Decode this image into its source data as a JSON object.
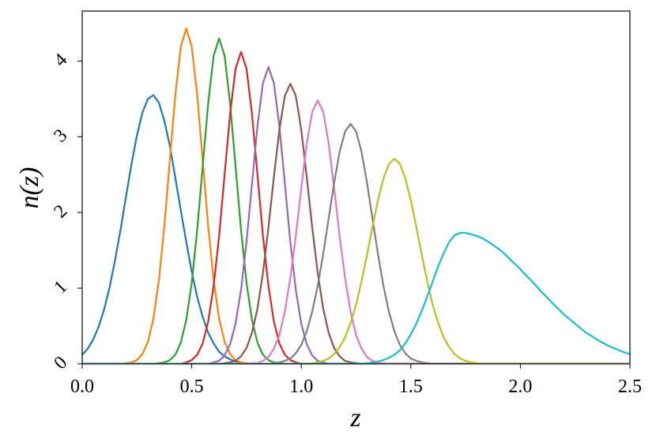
{
  "chart_data": {
    "type": "line",
    "x_label": "z",
    "y_label": "n(z)",
    "xlim": [
      0,
      2.5
    ],
    "ylim": [
      0,
      4.66
    ],
    "xticks": [
      {
        "value": 0,
        "label": "0.0"
      },
      0.5,
      {
        "value": 1,
        "label": "1.0"
      },
      1.5,
      {
        "value": 2,
        "label": "2.0"
      },
      2.5
    ],
    "yticks": [
      0,
      1,
      2,
      3,
      4
    ],
    "grid": false,
    "x": [
      0,
      0.025,
      0.05,
      0.075,
      0.1,
      0.125,
      0.15,
      0.175,
      0.2,
      0.225,
      0.25,
      0.275,
      0.3,
      0.325,
      0.35,
      0.375,
      0.4,
      0.425,
      0.45,
      0.475,
      0.5,
      0.525,
      0.55,
      0.575,
      0.6,
      0.625,
      0.65,
      0.675,
      0.7,
      0.725,
      0.75,
      0.775,
      0.8,
      0.825,
      0.85,
      0.875,
      0.9,
      0.925,
      0.95,
      0.975,
      1,
      1.025,
      1.05,
      1.075,
      1.1,
      1.125,
      1.15,
      1.175,
      1.2,
      1.225,
      1.25,
      1.275,
      1.3,
      1.325,
      1.35,
      1.375,
      1.4,
      1.425,
      1.45,
      1.475,
      1.5,
      1.525,
      1.55,
      1.575,
      1.6,
      1.625,
      1.65,
      1.675,
      1.7,
      1.725,
      1.75,
      1.775,
      1.8,
      1.825,
      1.85,
      1.875,
      1.9,
      1.925,
      1.95,
      1.975,
      2,
      2.025,
      2.05,
      2.075,
      2.1,
      2.125,
      2.15,
      2.175,
      2.2,
      2.225,
      2.25,
      2.275,
      2.3,
      2.325,
      2.35,
      2.375,
      2.4,
      2.425,
      2.45,
      2.475,
      2.5
    ],
    "series": [
      {
        "color": "#1f77b4",
        "values": [
          0.12,
          0.2,
          0.32,
          0.49,
          0.72,
          1.01,
          1.37,
          1.77,
          2.21,
          2.64,
          3.02,
          3.32,
          3.5,
          3.55,
          3.45,
          3.21,
          2.88,
          2.46,
          2.03,
          1.61,
          1.22,
          0.88,
          0.62,
          0.41,
          0.27,
          0.16,
          0.1,
          0.06,
          0.03,
          0.01,
          0,
          0,
          0,
          0,
          0,
          0,
          0,
          0,
          0,
          0,
          0,
          0,
          0,
          0,
          0,
          0,
          0,
          0,
          0,
          0,
          0,
          0,
          0,
          0,
          0,
          0,
          0,
          0,
          0,
          0,
          0,
          0,
          0,
          0,
          0,
          0,
          0,
          0,
          0,
          0,
          0,
          0,
          0,
          0,
          0,
          0,
          0,
          0,
          0,
          0,
          0,
          0,
          0,
          0,
          0,
          0,
          0,
          0,
          0,
          0,
          0,
          0,
          0,
          0,
          0,
          0,
          0,
          0,
          0,
          0,
          0
        ]
      },
      {
        "color": "#ff7f0e",
        "values": [
          0,
          0,
          0,
          0,
          0,
          0,
          0,
          0,
          0.01,
          0.02,
          0.05,
          0.13,
          0.29,
          0.6,
          1.1,
          1.82,
          2.69,
          3.55,
          4.19,
          4.43,
          4.19,
          3.55,
          2.69,
          1.82,
          1.1,
          0.6,
          0.29,
          0.13,
          0.05,
          0.02,
          0.01,
          0,
          0,
          0,
          0,
          0,
          0,
          0,
          0,
          0,
          0,
          0,
          0,
          0,
          0,
          0,
          0,
          0,
          0,
          0,
          0,
          0,
          0,
          0,
          0,
          0,
          0,
          0,
          0,
          0,
          0,
          0,
          0,
          0,
          0,
          0,
          0,
          0,
          0,
          0,
          0,
          0,
          0,
          0,
          0,
          0,
          0,
          0,
          0,
          0,
          0,
          0,
          0,
          0,
          0,
          0,
          0,
          0,
          0,
          0,
          0,
          0,
          0,
          0,
          0,
          0,
          0,
          0,
          0,
          0,
          0
        ]
      },
      {
        "color": "#2ca02c",
        "values": [
          0,
          0,
          0,
          0,
          0,
          0,
          0,
          0,
          0,
          0,
          0,
          0,
          0,
          0,
          0.01,
          0.02,
          0.05,
          0.12,
          0.28,
          0.58,
          1.07,
          1.77,
          2.61,
          3.44,
          4.07,
          4.3,
          4.07,
          3.44,
          2.61,
          1.77,
          1.07,
          0.58,
          0.28,
          0.12,
          0.05,
          0.02,
          0.01,
          0,
          0,
          0,
          0,
          0,
          0,
          0,
          0,
          0,
          0,
          0,
          0,
          0,
          0,
          0,
          0,
          0,
          0,
          0,
          0,
          0,
          0,
          0,
          0,
          0,
          0,
          0,
          0,
          0,
          0,
          0,
          0,
          0,
          0,
          0,
          0,
          0,
          0,
          0,
          0,
          0,
          0,
          0,
          0,
          0,
          0,
          0,
          0,
          0,
          0,
          0,
          0,
          0,
          0,
          0,
          0,
          0,
          0,
          0,
          0,
          0,
          0,
          0,
          0
        ]
      },
      {
        "color": "#d62728",
        "values": [
          0,
          0,
          0,
          0,
          0,
          0,
          0,
          0,
          0,
          0,
          0,
          0,
          0,
          0,
          0,
          0,
          0,
          0,
          0,
          0.02,
          0.05,
          0.12,
          0.27,
          0.56,
          1.03,
          1.69,
          2.5,
          3.3,
          3.9,
          4.12,
          3.9,
          3.3,
          2.5,
          1.69,
          1.03,
          0.56,
          0.27,
          0.12,
          0.05,
          0.02,
          0,
          0,
          0,
          0,
          0,
          0,
          0,
          0,
          0,
          0,
          0,
          0,
          0,
          0,
          0,
          0,
          0,
          0,
          0,
          0,
          0,
          0,
          0,
          0,
          0,
          0,
          0,
          0,
          0,
          0,
          0,
          0,
          0,
          0,
          0,
          0,
          0,
          0,
          0,
          0,
          0,
          0,
          0,
          0,
          0,
          0,
          0,
          0,
          0,
          0,
          0,
          0,
          0,
          0,
          0,
          0,
          0,
          0,
          0,
          0,
          0
        ]
      },
      {
        "color": "#9467bd",
        "values": [
          0,
          0,
          0,
          0,
          0,
          0,
          0,
          0,
          0,
          0,
          0,
          0,
          0,
          0,
          0,
          0,
          0,
          0,
          0,
          0,
          0,
          0,
          0,
          0,
          0.02,
          0.04,
          0.11,
          0.26,
          0.53,
          0.98,
          1.61,
          2.38,
          3.14,
          3.71,
          3.92,
          3.71,
          3.14,
          2.38,
          1.61,
          0.98,
          0.53,
          0.26,
          0.11,
          0.04,
          0.02,
          0,
          0,
          0,
          0,
          0,
          0,
          0,
          0,
          0,
          0,
          0,
          0,
          0,
          0,
          0,
          0,
          0,
          0,
          0,
          0,
          0,
          0,
          0,
          0,
          0,
          0,
          0,
          0,
          0,
          0,
          0,
          0,
          0,
          0,
          0,
          0,
          0,
          0,
          0,
          0,
          0,
          0,
          0,
          0,
          0,
          0,
          0,
          0,
          0,
          0,
          0,
          0,
          0,
          0,
          0,
          0
        ]
      },
      {
        "color": "#8c564b",
        "values": [
          0,
          0,
          0,
          0,
          0,
          0,
          0,
          0,
          0,
          0,
          0,
          0,
          0,
          0,
          0,
          0,
          0,
          0,
          0,
          0,
          0,
          0,
          0,
          0,
          0,
          0,
          0.01,
          0.02,
          0.04,
          0.1,
          0.21,
          0.41,
          0.73,
          1.2,
          1.8,
          2.47,
          3.09,
          3.54,
          3.7,
          3.54,
          3.09,
          2.47,
          1.8,
          1.2,
          0.73,
          0.41,
          0.21,
          0.1,
          0.04,
          0.02,
          0.01,
          0,
          0,
          0,
          0,
          0,
          0,
          0,
          0,
          0,
          0,
          0,
          0,
          0,
          0,
          0,
          0,
          0,
          0,
          0,
          0,
          0,
          0,
          0,
          0,
          0,
          0,
          0,
          0,
          0,
          0,
          0,
          0,
          0,
          0,
          0,
          0,
          0,
          0,
          0,
          0,
          0,
          0,
          0,
          0,
          0,
          0,
          0,
          0,
          0,
          0
        ]
      },
      {
        "color": "#e377c2",
        "values": [
          0,
          0,
          0,
          0,
          0,
          0,
          0,
          0,
          0,
          0,
          0,
          0,
          0,
          0,
          0,
          0,
          0,
          0,
          0,
          0,
          0,
          0,
          0,
          0,
          0,
          0,
          0,
          0,
          0,
          0,
          0,
          0.01,
          0.01,
          0.04,
          0.09,
          0.2,
          0.38,
          0.69,
          1.13,
          1.69,
          2.32,
          2.91,
          3.33,
          3.48,
          3.33,
          2.91,
          2.32,
          1.69,
          1.13,
          0.69,
          0.38,
          0.2,
          0.09,
          0.04,
          0.01,
          0.01,
          0,
          0,
          0,
          0,
          0,
          0,
          0,
          0,
          0,
          0,
          0,
          0,
          0,
          0,
          0,
          0,
          0,
          0,
          0,
          0,
          0,
          0,
          0,
          0,
          0,
          0,
          0,
          0,
          0,
          0,
          0,
          0,
          0,
          0,
          0,
          0,
          0,
          0,
          0,
          0,
          0,
          0,
          0,
          0,
          0
        ]
      },
      {
        "color": "#7f7f7f",
        "values": [
          0,
          0,
          0,
          0,
          0,
          0,
          0,
          0,
          0,
          0,
          0,
          0,
          0,
          0,
          0,
          0,
          0,
          0,
          0,
          0,
          0,
          0,
          0,
          0,
          0,
          0,
          0,
          0,
          0,
          0,
          0,
          0,
          0,
          0,
          0,
          0.01,
          0.02,
          0.04,
          0.07,
          0.14,
          0.25,
          0.43,
          0.69,
          1.03,
          1.45,
          1.92,
          2.39,
          2.8,
          3.07,
          3.17,
          3.07,
          2.8,
          2.39,
          1.92,
          1.45,
          1.03,
          0.69,
          0.43,
          0.25,
          0.14,
          0.07,
          0.04,
          0.02,
          0.01,
          0,
          0,
          0,
          0,
          0,
          0,
          0,
          0,
          0,
          0,
          0,
          0,
          0,
          0,
          0,
          0,
          0,
          0,
          0,
          0,
          0,
          0,
          0,
          0,
          0,
          0,
          0,
          0,
          0,
          0,
          0,
          0,
          0,
          0,
          0,
          0,
          0
        ]
      },
      {
        "color": "#bcbd22",
        "values": [
          0,
          0,
          0,
          0,
          0,
          0,
          0,
          0,
          0,
          0,
          0,
          0,
          0,
          0,
          0,
          0,
          0,
          0,
          0,
          0,
          0,
          0,
          0,
          0,
          0,
          0,
          0,
          0,
          0,
          0,
          0,
          0,
          0,
          0,
          0,
          0,
          0,
          0,
          0,
          0,
          0,
          0,
          0.01,
          0.02,
          0.04,
          0.07,
          0.13,
          0.22,
          0.35,
          0.54,
          0.78,
          1.09,
          1.44,
          1.81,
          2.16,
          2.45,
          2.64,
          2.71,
          2.64,
          2.45,
          2.16,
          1.81,
          1.44,
          1.09,
          0.78,
          0.54,
          0.35,
          0.22,
          0.13,
          0.07,
          0.04,
          0.02,
          0.01,
          0,
          0,
          0,
          0,
          0,
          0,
          0,
          0,
          0,
          0,
          0,
          0,
          0,
          0,
          0,
          0,
          0,
          0,
          0,
          0,
          0,
          0,
          0,
          0,
          0,
          0,
          0,
          0
        ]
      },
      {
        "color": "#17becf",
        "values": [
          0,
          0,
          0,
          0,
          0,
          0,
          0,
          0,
          0,
          0,
          0,
          0,
          0,
          0,
          0,
          0,
          0,
          0,
          0,
          0,
          0,
          0,
          0,
          0,
          0,
          0,
          0,
          0,
          0,
          0,
          0,
          0,
          0,
          0,
          0,
          0,
          0,
          0,
          0,
          0,
          0,
          0,
          0,
          0,
          0,
          0,
          0,
          0,
          0,
          0,
          0,
          0,
          0.01,
          0.02,
          0.03,
          0.05,
          0.08,
          0.12,
          0.18,
          0.27,
          0.39,
          0.53,
          0.7,
          0.89,
          1.09,
          1.29,
          1.46,
          1.61,
          1.7,
          1.73,
          1.73,
          1.71,
          1.69,
          1.66,
          1.62,
          1.57,
          1.52,
          1.46,
          1.39,
          1.32,
          1.25,
          1.17,
          1.1,
          1.02,
          0.94,
          0.87,
          0.79,
          0.72,
          0.65,
          0.59,
          0.53,
          0.47,
          0.41,
          0.37,
          0.32,
          0.28,
          0.24,
          0.21,
          0.18,
          0.15,
          0.13
        ]
      }
    ]
  }
}
